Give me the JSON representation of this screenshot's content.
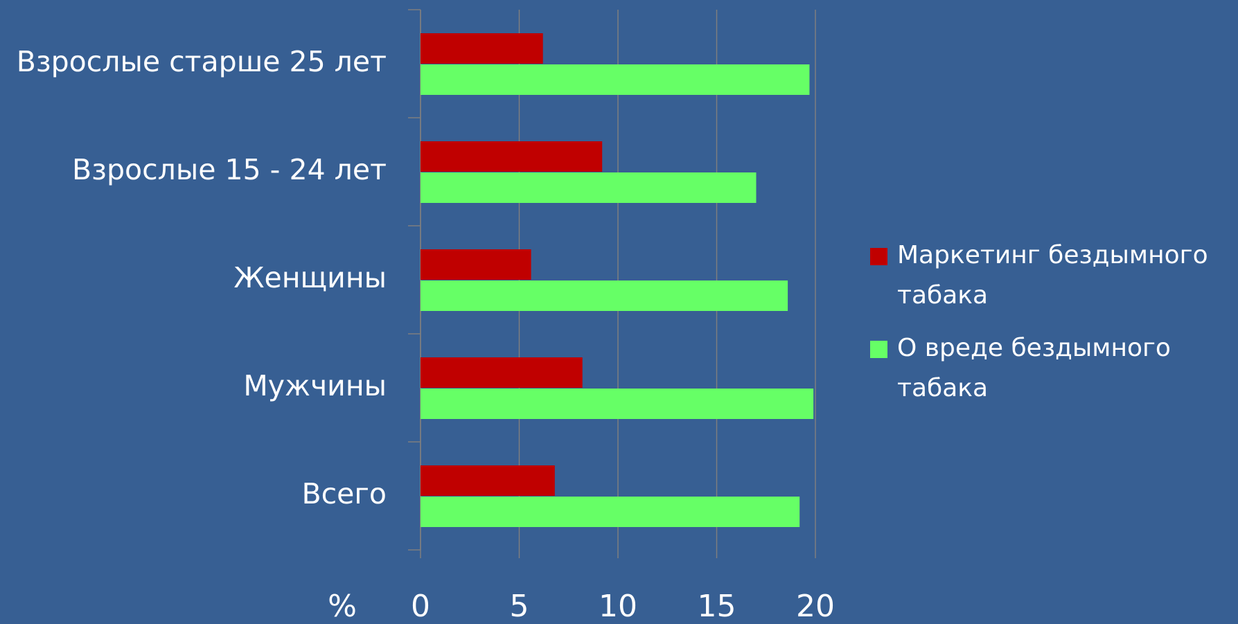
{
  "chart_data": {
    "type": "hbar",
    "categories": [
      "Взрослые старше 25 лет",
      "Взрослые 15 - 24 лет",
      "Женщины",
      "Мужчины",
      "Всего"
    ],
    "series": [
      {
        "name": "Маркетинг бездымного табака",
        "color": "#c00000",
        "values": [
          6.2,
          9.2,
          5.6,
          8.2,
          6.8
        ]
      },
      {
        "name": "О вреде бездымного табака",
        "color": "#66ff66",
        "values": [
          19.7,
          17.0,
          18.6,
          19.9,
          19.2
        ]
      }
    ],
    "xlabel": "%",
    "xlim": [
      0,
      20
    ],
    "xticks": [
      0,
      5,
      10,
      15,
      20
    ],
    "grid": true,
    "legend": "right"
  }
}
